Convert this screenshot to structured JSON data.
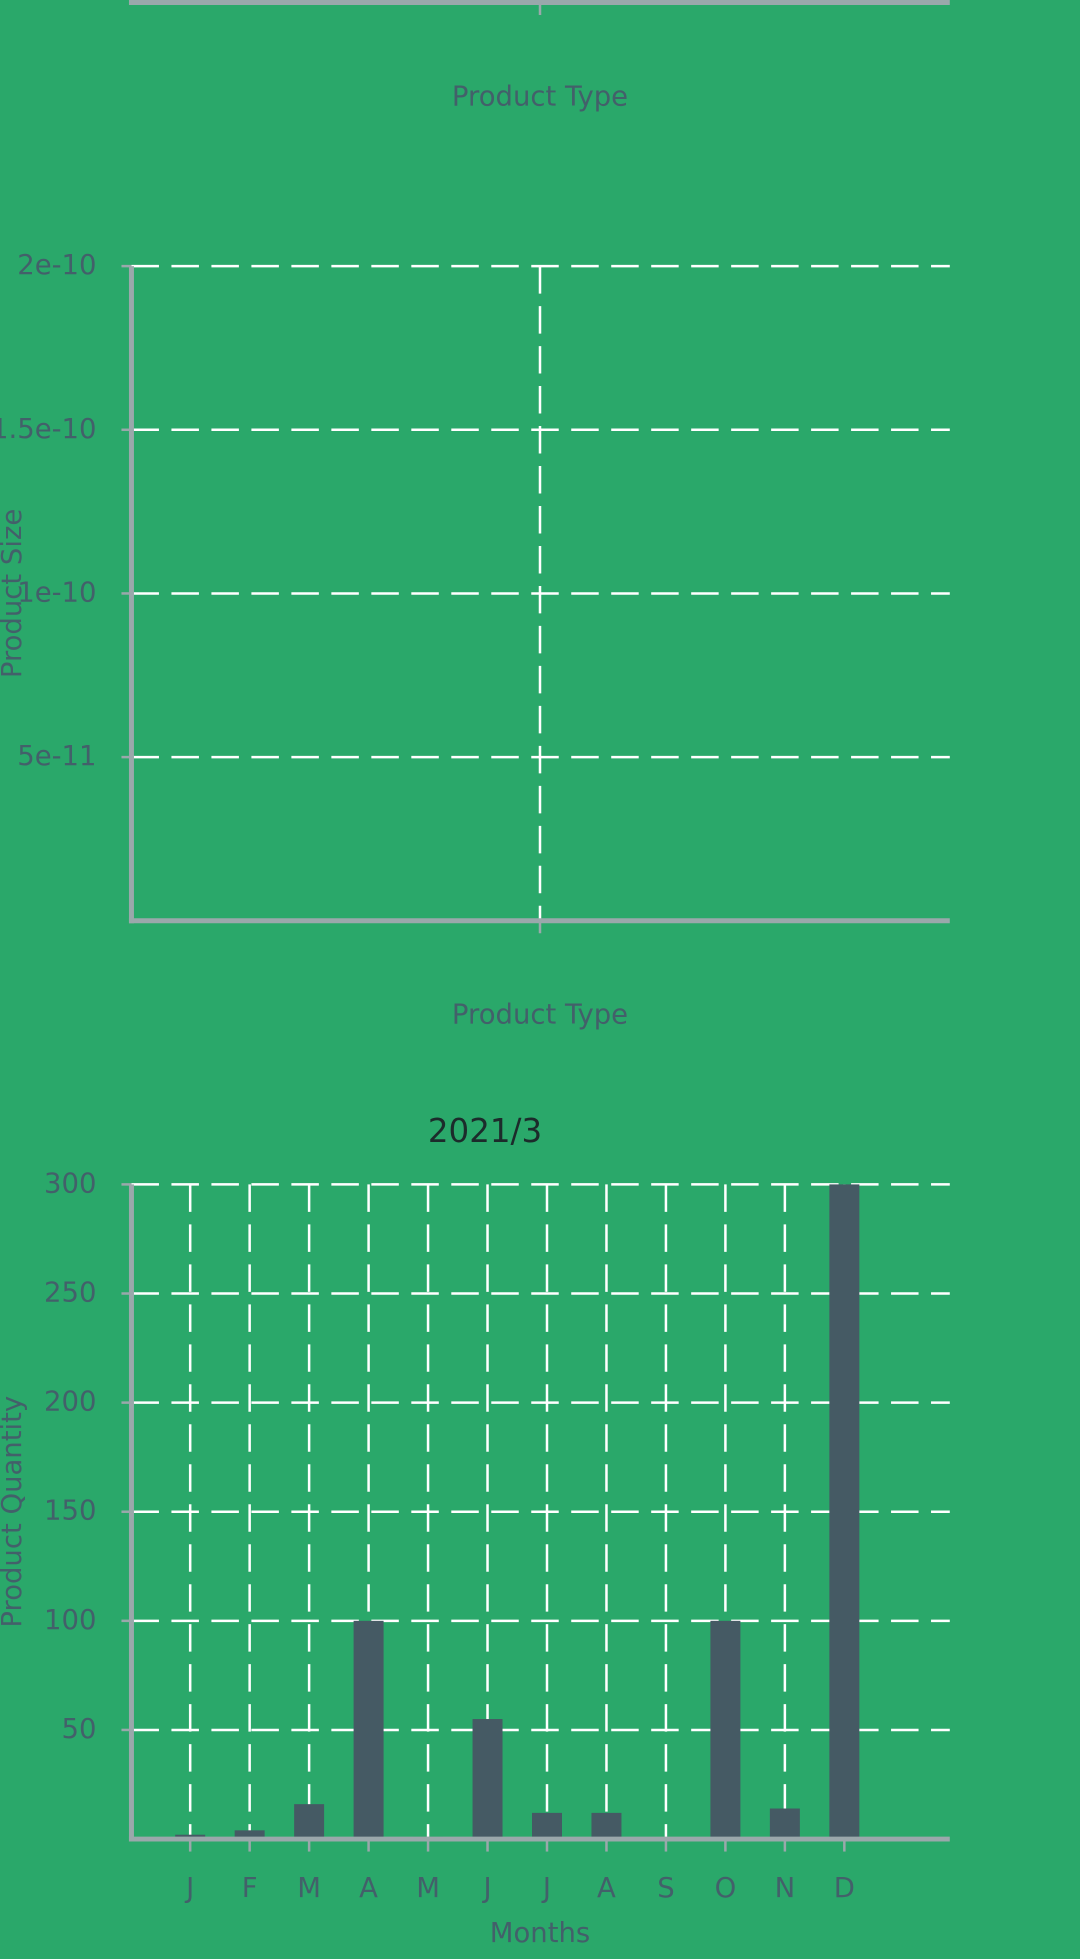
{
  "chart_data": [
    {
      "type": "bar",
      "xlabel": "Product Type"
    },
    {
      "type": "bar",
      "xlabel": "Product Type",
      "ylabel": "Product Size",
      "ylim": [
        0,
        2e-10
      ],
      "yticks": [
        5e-11,
        1e-10,
        1.5e-10,
        2e-10
      ],
      "grid": true
    },
    {
      "type": "bar",
      "title": "2021/3",
      "xlabel": "Months",
      "ylabel": "Product Quantity",
      "categories": [
        "J",
        "F",
        "M",
        "A",
        "M",
        "J",
        "J",
        "A",
        "S",
        "O",
        "N",
        "D"
      ],
      "values": [
        2,
        4,
        16,
        100,
        1,
        55,
        12,
        12,
        0,
        100,
        14,
        300
      ],
      "color": "#455a64",
      "ylim": [
        0,
        300
      ],
      "yticks": [
        50,
        100,
        150,
        200,
        250,
        300
      ],
      "grid": true
    }
  ]
}
